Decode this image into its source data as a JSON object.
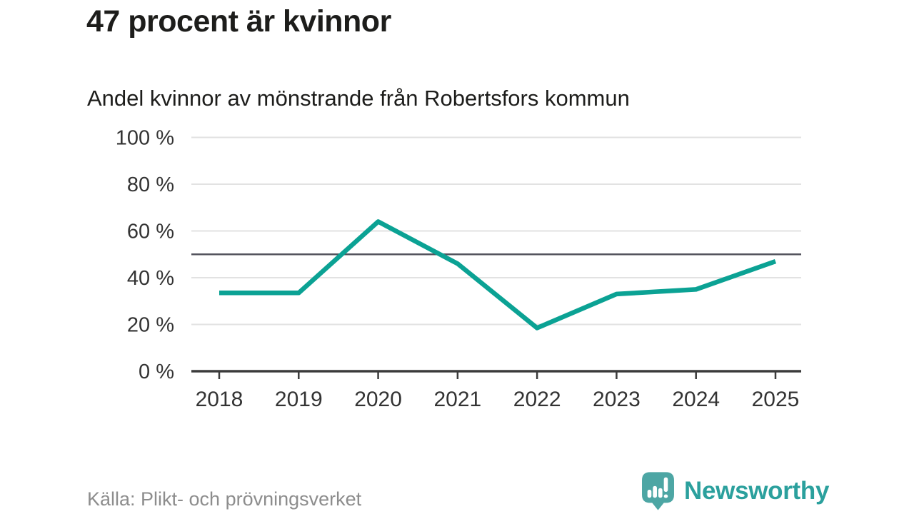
{
  "header": {
    "title": "47 procent är kvinnor",
    "subtitle": "Andel kvinnor av mönstrande från Robertsfors kommun"
  },
  "chart_data": {
    "type": "line",
    "title": "47 procent är kvinnor",
    "subtitle": "Andel kvinnor av mönstrande från Robertsfors kommun",
    "categories": [
      "2018",
      "2019",
      "2020",
      "2021",
      "2022",
      "2023",
      "2024",
      "2025"
    ],
    "series": [
      {
        "name": "Andel kvinnor av mönstrande",
        "values": [
          33.5,
          33.5,
          64,
          46,
          18.5,
          33,
          35,
          47
        ]
      }
    ],
    "ylim": [
      0,
      100
    ],
    "yticks": [
      {
        "value": 0,
        "label": "0 %"
      },
      {
        "value": 20,
        "label": "20 %"
      },
      {
        "value": 40,
        "label": "40 %"
      },
      {
        "value": 60,
        "label": "60 %"
      },
      {
        "value": 80,
        "label": "80 %"
      },
      {
        "value": 100,
        "label": "100 %"
      }
    ],
    "reference_line": 50,
    "grid": true,
    "legend": "none",
    "line_color": "#0ba294"
  },
  "footer": {
    "source": "Källa: Plikt- och prövningsverket",
    "brand": "Newsworthy"
  },
  "colors": {
    "accent": "#0ba294",
    "brand_teal": "#2ba09d",
    "logo_mark": "#4da6a4",
    "grid": "#e2e2e2",
    "reference": "#54545e",
    "axis": "#3b3b3b",
    "tick_text": "#333333",
    "title_text": "#1d1d1b",
    "muted_text": "#8d8d8d"
  }
}
